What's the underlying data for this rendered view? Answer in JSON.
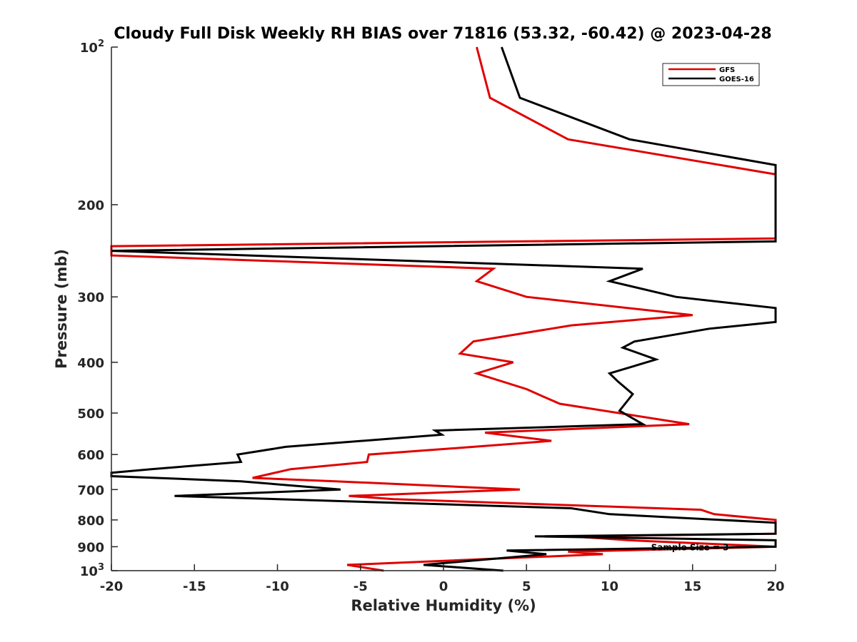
{
  "chart_data": {
    "type": "line",
    "title": "Cloudy Full Disk Weekly RH BIAS over 71816 (53.32, -60.42) @ 2023-04-28",
    "xlabel": "Relative Humidity (%)",
    "ylabel": "Pressure (mb)",
    "xlim": [
      -20,
      20
    ],
    "ylim": [
      100,
      1000
    ],
    "yscale": "log",
    "y_reversed": true,
    "grid": false,
    "legend_position": "top-right",
    "x_ticks": [
      -20,
      -15,
      -10,
      -5,
      0,
      5,
      10,
      15,
      20
    ],
    "x_tick_labels": [
      "-20",
      "-15",
      "-10",
      "-5",
      "0",
      "5",
      "10",
      "15",
      "20"
    ],
    "y_ticks": [
      100,
      200,
      300,
      400,
      500,
      600,
      700,
      800,
      900,
      1000
    ],
    "y_tick_labels": [
      {
        "base": "10",
        "exp": "2"
      },
      {
        "text": "200"
      },
      {
        "text": "300"
      },
      {
        "text": "400"
      },
      {
        "text": "500"
      },
      {
        "text": "600"
      },
      {
        "text": "700"
      },
      {
        "text": "800"
      },
      {
        "text": "900"
      },
      {
        "base": "10",
        "exp": "3"
      }
    ],
    "annotation": {
      "text": "Sample Size = 3",
      "x": 12.5,
      "y": 900
    },
    "series": [
      {
        "name": "GFS",
        "color": "#e00000",
        "points": [
          [
            2,
            100
          ],
          [
            2.8,
            125
          ],
          [
            7.5,
            150
          ],
          [
            20,
            175
          ],
          [
            20,
            232
          ],
          [
            -20,
            240
          ],
          [
            -20,
            250
          ],
          [
            3,
            265
          ],
          [
            2,
            280
          ],
          [
            5,
            300
          ],
          [
            15,
            325
          ],
          [
            7.7,
            340
          ],
          [
            1.8,
            365
          ],
          [
            1,
            385
          ],
          [
            4.2,
            400
          ],
          [
            2,
            420
          ],
          [
            5,
            450
          ],
          [
            6,
            465
          ],
          [
            7,
            480
          ],
          [
            14.8,
            525
          ],
          [
            2.5,
            545
          ],
          [
            6.5,
            565
          ],
          [
            1.8,
            580
          ],
          [
            -4.5,
            600
          ],
          [
            -4.6,
            620
          ],
          [
            -9.2,
            640
          ],
          [
            -11.5,
            665
          ],
          [
            -6.5,
            675
          ],
          [
            4.6,
            700
          ],
          [
            -5.7,
            720
          ],
          [
            -3,
            730
          ],
          [
            15.5,
            765
          ],
          [
            16.3,
            780
          ],
          [
            20,
            800
          ],
          [
            20,
            850
          ],
          [
            7.7,
            860
          ],
          [
            11.2,
            875
          ],
          [
            20,
            900
          ],
          [
            7.5,
            920
          ],
          [
            9.6,
            930
          ],
          [
            -5.8,
            975
          ],
          [
            -3.6,
            1000
          ]
        ]
      },
      {
        "name": "GOES-16",
        "color": "#000000",
        "points": [
          [
            3.5,
            100
          ],
          [
            4.6,
            125
          ],
          [
            11.2,
            150
          ],
          [
            20,
            168
          ],
          [
            20,
            235
          ],
          [
            -20,
            245
          ],
          [
            12,
            265
          ],
          [
            10,
            280
          ],
          [
            14,
            300
          ],
          [
            20,
            315
          ],
          [
            20,
            335
          ],
          [
            16,
            345
          ],
          [
            11.5,
            365
          ],
          [
            10.8,
            375
          ],
          [
            12.8,
            395
          ],
          [
            10,
            420
          ],
          [
            10.5,
            435
          ],
          [
            11.4,
            460
          ],
          [
            10.6,
            495
          ],
          [
            12,
            525
          ],
          [
            -0.5,
            540
          ],
          [
            -0.1,
            550
          ],
          [
            -9.5,
            580
          ],
          [
            -12.4,
            600
          ],
          [
            -12.2,
            620
          ],
          [
            -17.6,
            640
          ],
          [
            -20,
            650
          ],
          [
            -20,
            660
          ],
          [
            -12.2,
            675
          ],
          [
            -6.2,
            700
          ],
          [
            -16.2,
            720
          ],
          [
            7.7,
            760
          ],
          [
            10,
            780
          ],
          [
            20,
            810
          ],
          [
            20,
            850
          ],
          [
            5.5,
            860
          ],
          [
            20,
            875
          ],
          [
            20,
            900
          ],
          [
            3.8,
            915
          ],
          [
            6.2,
            930
          ],
          [
            -1.2,
            975
          ],
          [
            3.6,
            1000
          ]
        ]
      }
    ]
  }
}
